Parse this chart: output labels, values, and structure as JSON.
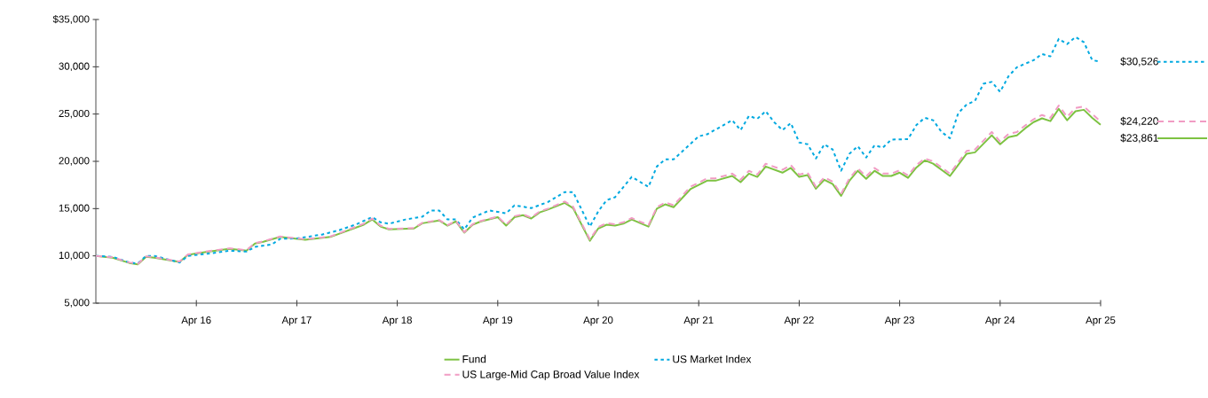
{
  "chart_data": {
    "type": "line",
    "x": [
      "2015-04",
      "2015-06",
      "2015-08",
      "2015-09",
      "2015-10",
      "2015-11",
      "2016-02",
      "2016-03",
      "2016-05",
      "2016-08",
      "2016-10",
      "2016-11",
      "2016-12",
      "2017-02",
      "2017-05",
      "2017-08",
      "2017-12",
      "2018-01",
      "2018-02",
      "2018-03",
      "2018-06",
      "2018-07",
      "2018-09",
      "2018-10",
      "2018-11",
      "2018-12",
      "2019-01",
      "2019-02",
      "2019-04",
      "2019-05",
      "2019-06",
      "2019-07",
      "2019-08",
      "2019-09",
      "2019-10",
      "2019-12",
      "2020-01",
      "2020-03",
      "2020-04",
      "2020-05",
      "2020-06",
      "2020-07",
      "2020-08",
      "2020-10",
      "2020-11",
      "2020-12",
      "2021-01",
      "2021-03",
      "2021-05",
      "2021-06",
      "2021-08",
      "2021-09",
      "2021-10",
      "2021-11",
      "2021-12",
      "2022-02",
      "2022-03",
      "2022-04",
      "2022-05",
      "2022-06",
      "2022-07",
      "2022-08",
      "2022-09",
      "2022-10",
      "2022-11",
      "2022-12",
      "2023-01",
      "2023-02",
      "2023-03",
      "2023-04",
      "2023-05",
      "2023-06",
      "2023-07",
      "2023-08",
      "2023-10",
      "2023-12",
      "2024-01",
      "2024-03",
      "2024-04",
      "2024-05",
      "2024-06",
      "2024-07",
      "2024-08",
      "2024-09",
      "2024-10",
      "2024-11",
      "2024-12",
      "2025-01",
      "2025-02",
      "2025-03",
      "2025-04"
    ],
    "series": [
      {
        "name": "Fund",
        "color": "#7dc242",
        "line_style": "solid",
        "values": [
          10000,
          9800,
          9250,
          9100,
          9900,
          9800,
          9350,
          10100,
          10400,
          10750,
          10550,
          11300,
          11500,
          12000,
          11700,
          12000,
          13300,
          13850,
          13100,
          12800,
          12900,
          13450,
          13750,
          13200,
          13650,
          12450,
          13300,
          13650,
          14100,
          13200,
          14100,
          14300,
          13950,
          14600,
          14900,
          15600,
          15050,
          11600,
          12900,
          13300,
          13200,
          13400,
          13850,
          13100,
          15000,
          15450,
          15150,
          17050,
          17950,
          17950,
          18450,
          17800,
          18700,
          18350,
          19450,
          18800,
          19300,
          18350,
          18550,
          17100,
          18050,
          17600,
          16350,
          17950,
          19000,
          18150,
          19000,
          18450,
          18450,
          18800,
          18250,
          19350,
          20100,
          19750,
          18450,
          20800,
          20950,
          22750,
          21800,
          22550,
          22750,
          23500,
          24150,
          24550,
          24250,
          25550,
          24350,
          25300,
          25450,
          24600,
          23861
        ]
      },
      {
        "name": "US Market Index",
        "color": "#00a9e0",
        "line_style": "dotted",
        "x": [
          "2015-04",
          "2015-06",
          "2015-08",
          "2015-09",
          "2015-10",
          "2015-11",
          "2016-02",
          "2016-03",
          "2016-06",
          "2016-08",
          "2016-10",
          "2016-11",
          "2017-01",
          "2017-02",
          "2017-04",
          "2017-07",
          "2017-09",
          "2017-11",
          "2018-01",
          "2018-02",
          "2018-03",
          "2018-05",
          "2018-07",
          "2018-08",
          "2018-09",
          "2018-10",
          "2018-11",
          "2018-12",
          "2019-01",
          "2019-03",
          "2019-05",
          "2019-06",
          "2019-08",
          "2019-10",
          "2019-12",
          "2020-01",
          "2020-03",
          "2020-04",
          "2020-05",
          "2020-06",
          "2020-08",
          "2020-10",
          "2020-11",
          "2020-12",
          "2021-01",
          "2021-04",
          "2021-05",
          "2021-08",
          "2021-09",
          "2021-10",
          "2021-11",
          "2021-12",
          "2022-01",
          "2022-02",
          "2022-03",
          "2022-04",
          "2022-05",
          "2022-06",
          "2022-07",
          "2022-08",
          "2022-09",
          "2022-10",
          "2022-11",
          "2022-12",
          "2023-01",
          "2023-02",
          "2023-03",
          "2023-05",
          "2023-06",
          "2023-07",
          "2023-08",
          "2023-09",
          "2023-10",
          "2023-11",
          "2023-12",
          "2024-01",
          "2024-02",
          "2024-03",
          "2024-04",
          "2024-05",
          "2024-06",
          "2024-08",
          "2024-09",
          "2024-10",
          "2024-11",
          "2024-12",
          "2025-01",
          "2025-02",
          "2025-03",
          "2025-04"
        ],
        "values": [
          10000,
          9900,
          9300,
          9200,
          10000,
          10000,
          9300,
          10000,
          10300,
          10550,
          10450,
          10950,
          11200,
          11800,
          11850,
          12250,
          12700,
          13300,
          14100,
          13550,
          13400,
          13850,
          14150,
          14800,
          14800,
          13850,
          13850,
          12800,
          14050,
          14800,
          14500,
          15350,
          15050,
          15700,
          16750,
          16750,
          13100,
          14700,
          15900,
          16200,
          18350,
          17300,
          19450,
          20200,
          20200,
          22650,
          22850,
          24350,
          23300,
          24800,
          24500,
          25300,
          24150,
          23300,
          24050,
          22000,
          21800,
          20300,
          21800,
          21250,
          19000,
          20800,
          21600,
          20400,
          21700,
          21450,
          22300,
          22350,
          23850,
          24600,
          24350,
          23100,
          22450,
          25100,
          26000,
          26400,
          28200,
          28400,
          27350,
          29000,
          29950,
          30700,
          31350,
          31100,
          32950,
          32400,
          33150,
          32600,
          30700,
          30526
        ]
      },
      {
        "name": "US Large-Mid Cap Broad Value Index",
        "color": "#f19cc4",
        "line_style": "dashed",
        "values": [
          10000,
          9850,
          9300,
          9150,
          9950,
          9850,
          9400,
          10150,
          10450,
          10800,
          10600,
          11350,
          11550,
          12050,
          11750,
          12050,
          13400,
          13950,
          13200,
          12850,
          12950,
          13500,
          13800,
          13250,
          13700,
          12500,
          13350,
          13700,
          14150,
          13300,
          14200,
          14400,
          14050,
          14700,
          15000,
          15750,
          15200,
          11750,
          13050,
          13450,
          13350,
          13550,
          14000,
          13250,
          15150,
          15650,
          15350,
          17300,
          18200,
          18200,
          18700,
          18050,
          19000,
          18600,
          19750,
          19100,
          19600,
          18600,
          18800,
          17300,
          18300,
          17850,
          16550,
          18200,
          19250,
          18400,
          19300,
          18700,
          18700,
          19050,
          18500,
          19600,
          20300,
          20000,
          18700,
          21100,
          21250,
          23100,
          22100,
          22900,
          23100,
          23800,
          24450,
          24900,
          24600,
          25900,
          24700,
          25650,
          25800,
          25000,
          24220
        ]
      }
    ],
    "xlim": [
      "2015-04",
      "2025-04"
    ],
    "xticks": [
      {
        "value": "2016-04",
        "label": "Apr 16"
      },
      {
        "value": "2017-04",
        "label": "Apr 17"
      },
      {
        "value": "2018-04",
        "label": "Apr 18"
      },
      {
        "value": "2019-04",
        "label": "Apr 19"
      },
      {
        "value": "2020-04",
        "label": "Apr 20"
      },
      {
        "value": "2021-04",
        "label": "Apr 21"
      },
      {
        "value": "2022-04",
        "label": "Apr 22"
      },
      {
        "value": "2023-04",
        "label": "Apr 23"
      },
      {
        "value": "2024-04",
        "label": "Apr 24"
      },
      {
        "value": "2025-04",
        "label": "Apr 25"
      }
    ],
    "ylim": [
      5000,
      35000
    ],
    "yticks": [
      {
        "value": 5000,
        "label": "5,000"
      },
      {
        "value": 10000,
        "label": "10,000"
      },
      {
        "value": 15000,
        "label": "15,000"
      },
      {
        "value": 20000,
        "label": "20,000"
      },
      {
        "value": 25000,
        "label": "25,000"
      },
      {
        "value": 30000,
        "label": "30,000"
      },
      {
        "value": 35000,
        "label": "$35,000"
      }
    ],
    "annotations": [
      {
        "text": "$30,526",
        "x": "2025-04",
        "y": 30526
      },
      {
        "text": "$24,220",
        "x": "2025-04",
        "y": 24220
      },
      {
        "text": "$23,861",
        "x": "2025-04",
        "y": 23861
      }
    ],
    "legend": "bottom",
    "grid": false
  }
}
